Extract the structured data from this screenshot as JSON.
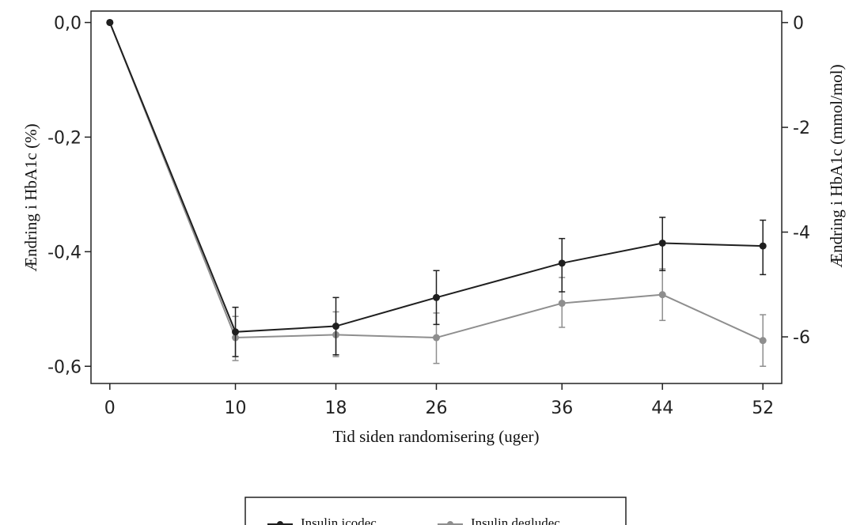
{
  "chart_data": {
    "type": "line",
    "title": "",
    "xlabel": "Tid siden randomisering (uger)",
    "ylabel_left": "Ændring i HbA1c (%)",
    "ylabel_right": "Ændring i HbA1c (mmol/mol)",
    "x": [
      0,
      10,
      18,
      26,
      36,
      44,
      52
    ],
    "x_ticks": [
      "0",
      "10",
      "18",
      "26",
      "36",
      "44",
      "52"
    ],
    "y_left_ticks": [
      {
        "value": 0.0,
        "label": "0,0"
      },
      {
        "value": -0.2,
        "label": "-0,2"
      },
      {
        "value": -0.4,
        "label": "-0,4"
      },
      {
        "value": -0.6,
        "label": "-0,6"
      }
    ],
    "y_right_ticks": [
      {
        "value": 0,
        "label": "0"
      },
      {
        "value": -2,
        "label": "-2"
      },
      {
        "value": -4,
        "label": "-4"
      },
      {
        "value": -6,
        "label": "-6"
      }
    ],
    "xlim": [
      -1.5,
      53.5
    ],
    "ylim_left": [
      -0.63,
      0.02
    ],
    "ylim_right_mmol": [
      -6.89,
      0.22
    ],
    "grid": false,
    "legend_position": "bottom",
    "series": [
      {
        "name": "Insulin icodec",
        "color": "#1f1f1f",
        "values": [
          0.0,
          -0.54,
          -0.53,
          -0.48,
          -0.42,
          -0.385,
          -0.39
        ],
        "err_low": [
          0.0,
          -0.583,
          -0.58,
          -0.527,
          -0.47,
          -0.433,
          -0.44
        ],
        "err_high": [
          0.0,
          -0.497,
          -0.48,
          -0.433,
          -0.377,
          -0.34,
          -0.345
        ]
      },
      {
        "name": "Insulin degludec",
        "color": "#8e8e8e",
        "values": [
          0.0,
          -0.55,
          -0.545,
          -0.55,
          -0.49,
          -0.475,
          -0.555
        ],
        "err_low": [
          0.0,
          -0.59,
          -0.583,
          -0.595,
          -0.532,
          -0.52,
          -0.6
        ],
        "err_high": [
          0.0,
          -0.513,
          -0.505,
          -0.507,
          -0.445,
          -0.43,
          -0.51
        ]
      }
    ]
  }
}
